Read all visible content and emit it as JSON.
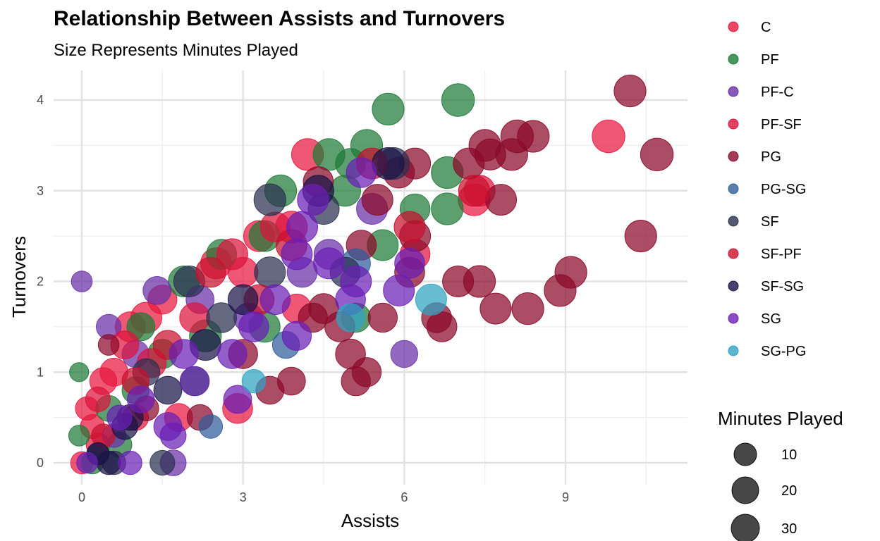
{
  "chart_data": {
    "type": "scatter",
    "title": "Relationship Between Assists and Turnovers",
    "subtitle": "Size Represents Minutes Played",
    "xlabel": "Assists",
    "ylabel": "Turnovers",
    "xlim": [
      -0.5,
      11.2
    ],
    "ylim": [
      -0.2,
      4.3
    ],
    "x_ticks": [
      0,
      3,
      6,
      9
    ],
    "y_ticks": [
      0,
      1,
      2,
      3,
      4
    ],
    "grid": true,
    "legend_position": "right",
    "color_legend": [
      {
        "label": "C",
        "color": "#E8173F"
      },
      {
        "label": "PF",
        "color": "#1E7A37"
      },
      {
        "label": "PF-C",
        "color": "#6A2FA8"
      },
      {
        "label": "PF-SF",
        "color": "#DC143C"
      },
      {
        "label": "PG",
        "color": "#8B0A2A"
      },
      {
        "label": "PG-SG",
        "color": "#2F5D9A"
      },
      {
        "label": "SF",
        "color": "#2B3150"
      },
      {
        "label": "SF-PF",
        "color": "#C8102E"
      },
      {
        "label": "SF-SG",
        "color": "#1A1446"
      },
      {
        "label": "SG",
        "color": "#6A1FB5"
      },
      {
        "label": "SG-PG",
        "color": "#2FA4C2"
      }
    ],
    "size_legend": {
      "title": "Minutes Played",
      "items": [
        {
          "label": "10",
          "value": 10
        },
        {
          "label": "20",
          "value": 20
        },
        {
          "label": "30",
          "value": 30
        }
      ]
    },
    "series": [
      {
        "name": "C",
        "points": [
          [
            0,
            0,
            12
          ],
          [
            0.1,
            0.6,
            14
          ],
          [
            0.2,
            0.4,
            15
          ],
          [
            0.4,
            0.9,
            20
          ],
          [
            0.6,
            1.0,
            22
          ],
          [
            0.9,
            1.5,
            26
          ],
          [
            1.2,
            1.6,
            28
          ],
          [
            1.5,
            1.8,
            24
          ],
          [
            2.5,
            2.2,
            28
          ],
          [
            3.0,
            2.1,
            26
          ],
          [
            3.3,
            2.5,
            28
          ],
          [
            3.9,
            2.6,
            30
          ],
          [
            4.2,
            3.4,
            30
          ],
          [
            2.9,
            0.6,
            26
          ],
          [
            1.8,
            0.5,
            22
          ],
          [
            7.3,
            2.9,
            30
          ],
          [
            9.8,
            3.6,
            32
          ],
          [
            4.0,
            1.7,
            24
          ],
          [
            1.0,
            0.5,
            18
          ],
          [
            0.3,
            0.2,
            14
          ]
        ]
      },
      {
        "name": "PF",
        "points": [
          [
            -0.05,
            1.0,
            8
          ],
          [
            -0.05,
            0.3,
            10
          ],
          [
            0.2,
            0.0,
            12
          ],
          [
            0.5,
            0.6,
            18
          ],
          [
            1.0,
            0.8,
            20
          ],
          [
            1.5,
            1.2,
            24
          ],
          [
            1.9,
            2.0,
            28
          ],
          [
            2.3,
            1.4,
            30
          ],
          [
            2.6,
            2.3,
            26
          ],
          [
            3.4,
            2.5,
            28
          ],
          [
            3.7,
            3.0,
            30
          ],
          [
            4.6,
            3.4,
            30
          ],
          [
            5.3,
            3.5,
            30
          ],
          [
            5.7,
            3.9,
            30
          ],
          [
            7.0,
            4.0,
            32
          ],
          [
            6.8,
            3.2,
            30
          ],
          [
            6.8,
            2.8,
            30
          ],
          [
            6.2,
            2.8,
            26
          ],
          [
            5.6,
            2.4,
            28
          ],
          [
            5.1,
            1.6,
            24
          ],
          [
            3.4,
            1.5,
            28
          ],
          [
            2.1,
            0.9,
            24
          ],
          [
            1.1,
            1.5,
            22
          ],
          [
            0.7,
            0.2,
            16
          ],
          [
            4.9,
            3.0,
            28
          ],
          [
            5.0,
            3.3,
            26
          ]
        ]
      },
      {
        "name": "PF-C",
        "points": [
          [
            0.0,
            2.0,
            10
          ],
          [
            0.5,
            1.5,
            16
          ],
          [
            1.0,
            1.2,
            20
          ],
          [
            1.4,
            1.9,
            22
          ],
          [
            2.2,
            1.8,
            22
          ],
          [
            3.1,
            1.6,
            24
          ],
          [
            4.1,
            2.1,
            26
          ],
          [
            4.6,
            2.3,
            26
          ],
          [
            5.4,
            2.8,
            28
          ],
          [
            6.0,
            1.2,
            20
          ],
          [
            1.7,
            0.0,
            18
          ],
          [
            0.6,
            0.3,
            14
          ]
        ]
      },
      {
        "name": "PF-SF",
        "points": [
          [
            0.3,
            0.7,
            16
          ],
          [
            0.8,
            1.3,
            22
          ],
          [
            1.3,
            1.1,
            24
          ],
          [
            2.1,
            1.6,
            26
          ],
          [
            2.8,
            2.3,
            28
          ],
          [
            3.6,
            2.6,
            26
          ],
          [
            6.2,
            2.3,
            26
          ],
          [
            7.4,
            3.0,
            28
          ]
        ]
      },
      {
        "name": "PG",
        "points": [
          [
            0.5,
            1.3,
            10
          ],
          [
            1.2,
            0.6,
            16
          ],
          [
            2.2,
            0.5,
            18
          ],
          [
            3.5,
            0.8,
            22
          ],
          [
            3.9,
            0.9,
            22
          ],
          [
            4.3,
            1.6,
            24
          ],
          [
            4.5,
            1.7,
            26
          ],
          [
            4.8,
            1.5,
            26
          ],
          [
            5.0,
            1.2,
            26
          ],
          [
            5.1,
            0.9,
            24
          ],
          [
            5.3,
            1.0,
            24
          ],
          [
            5.2,
            2.4,
            26
          ],
          [
            5.6,
            1.6,
            24
          ],
          [
            5.9,
            3.2,
            28
          ],
          [
            6.2,
            3.3,
            28
          ],
          [
            6.6,
            1.6,
            26
          ],
          [
            6.7,
            1.5,
            26
          ],
          [
            7.0,
            2.0,
            28
          ],
          [
            7.4,
            2.0,
            30
          ],
          [
            7.2,
            3.3,
            28
          ],
          [
            7.5,
            3.5,
            30
          ],
          [
            7.6,
            3.4,
            28
          ],
          [
            7.7,
            1.7,
            28
          ],
          [
            7.8,
            2.9,
            28
          ],
          [
            8.0,
            3.4,
            30
          ],
          [
            8.1,
            3.6,
            32
          ],
          [
            8.4,
            3.6,
            30
          ],
          [
            8.3,
            1.7,
            30
          ],
          [
            8.9,
            1.9,
            30
          ],
          [
            9.1,
            2.1,
            30
          ],
          [
            10.2,
            4.1,
            30
          ],
          [
            10.4,
            2.5,
            30
          ],
          [
            10.7,
            3.4,
            32
          ],
          [
            6.2,
            2.5,
            28
          ],
          [
            6.1,
            2.1,
            26
          ],
          [
            5.5,
            2.9,
            28
          ],
          [
            4.4,
            3.1,
            26
          ],
          [
            3.0,
            1.2,
            24
          ]
        ]
      },
      {
        "name": "PG-SG",
        "points": [
          [
            2.4,
            0.4,
            14
          ],
          [
            3.8,
            1.3,
            20
          ],
          [
            5.1,
            2.2,
            24
          ]
        ]
      },
      {
        "name": "SF",
        "points": [
          [
            0.3,
            0.1,
            12
          ],
          [
            1.2,
            1.0,
            20
          ],
          [
            2.0,
            2.0,
            28
          ],
          [
            2.6,
            1.6,
            26
          ],
          [
            3.5,
            2.9,
            30
          ],
          [
            3.5,
            2.1,
            28
          ],
          [
            4.5,
            2.8,
            28
          ],
          [
            5.8,
            3.3,
            30
          ],
          [
            4.9,
            2.1,
            26
          ],
          [
            1.5,
            0.0,
            16
          ],
          [
            0.6,
            0.0,
            14
          ]
        ]
      },
      {
        "name": "SF-PF",
        "points": [
          [
            0.4,
            0.3,
            14
          ],
          [
            1.0,
            0.9,
            20
          ],
          [
            1.6,
            1.3,
            24
          ],
          [
            2.4,
            2.1,
            26
          ],
          [
            3.3,
            1.8,
            26
          ],
          [
            3.9,
            2.4,
            28
          ],
          [
            5.4,
            3.3,
            28
          ],
          [
            6.1,
            2.6,
            28
          ],
          [
            7.3,
            3.0,
            28
          ]
        ]
      },
      {
        "name": "SF-SG",
        "points": [
          [
            0.3,
            0.1,
            12
          ],
          [
            0.8,
            0.4,
            18
          ],
          [
            1.6,
            0.8,
            22
          ],
          [
            2.3,
            1.3,
            28
          ],
          [
            3.0,
            1.8,
            26
          ],
          [
            4.4,
            3.0,
            28
          ],
          [
            5.7,
            3.3,
            30
          ],
          [
            0.9,
            0.5,
            18
          ],
          [
            0.5,
            0.0,
            14
          ]
        ]
      },
      {
        "name": "SG",
        "points": [
          [
            0.1,
            0.0,
            10
          ],
          [
            0.7,
            0.5,
            16
          ],
          [
            1.1,
            0.7,
            20
          ],
          [
            1.6,
            0.4,
            22
          ],
          [
            1.9,
            1.2,
            24
          ],
          [
            2.1,
            0.9,
            24
          ],
          [
            2.8,
            1.2,
            24
          ],
          [
            3.2,
            1.5,
            26
          ],
          [
            3.6,
            1.8,
            26
          ],
          [
            4.0,
            2.3,
            28
          ],
          [
            4.1,
            2.6,
            28
          ],
          [
            4.3,
            2.9,
            28
          ],
          [
            4.6,
            2.2,
            28
          ],
          [
            5.0,
            1.8,
            26
          ],
          [
            5.1,
            2.0,
            28
          ],
          [
            5.2,
            3.2,
            26
          ],
          [
            5.9,
            1.9,
            28
          ],
          [
            6.1,
            2.2,
            26
          ],
          [
            1.7,
            0.3,
            18
          ],
          [
            0.9,
            0.0,
            14
          ],
          [
            2.9,
            0.7,
            22
          ],
          [
            4.0,
            1.4,
            24
          ]
        ]
      },
      {
        "name": "SG-PG",
        "points": [
          [
            3.2,
            0.9,
            14
          ],
          [
            6.5,
            1.8,
            28
          ],
          [
            5.0,
            1.6,
            22
          ]
        ]
      }
    ]
  }
}
